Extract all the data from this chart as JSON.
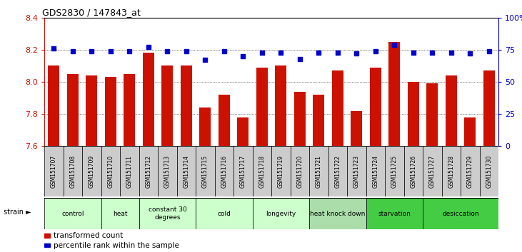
{
  "title": "GDS2830 / 147843_at",
  "samples": [
    "GSM151707",
    "GSM151708",
    "GSM151709",
    "GSM151710",
    "GSM151711",
    "GSM151712",
    "GSM151713",
    "GSM151714",
    "GSM151715",
    "GSM151716",
    "GSM151717",
    "GSM151718",
    "GSM151719",
    "GSM151720",
    "GSM151721",
    "GSM151722",
    "GSM151723",
    "GSM151724",
    "GSM151725",
    "GSM151726",
    "GSM151727",
    "GSM151728",
    "GSM151729",
    "GSM151730"
  ],
  "bar_values": [
    8.1,
    8.05,
    8.04,
    8.03,
    8.05,
    8.18,
    8.1,
    8.1,
    7.84,
    7.92,
    7.78,
    8.09,
    8.1,
    7.94,
    7.92,
    8.07,
    7.82,
    8.09,
    8.25,
    8.0,
    7.99,
    8.04,
    7.78,
    8.07
  ],
  "dot_values": [
    76,
    74,
    74,
    74,
    74,
    77,
    74,
    74,
    67,
    74,
    70,
    73,
    73,
    68,
    73,
    73,
    72,
    74,
    79,
    73,
    73,
    73,
    72,
    74
  ],
  "bar_color": "#cc1100",
  "dot_color": "#0000cc",
  "ylim_left": [
    7.6,
    8.4
  ],
  "ylim_right": [
    0,
    100
  ],
  "yticks_left": [
    7.6,
    7.8,
    8.0,
    8.2,
    8.4
  ],
  "yticks_right": [
    0,
    25,
    50,
    75,
    100
  ],
  "ytick_labels_right": [
    "0",
    "25",
    "50",
    "75",
    "100%"
  ],
  "groups": [
    {
      "label": "control",
      "start": 0,
      "end": 3,
      "color": "#ccffcc"
    },
    {
      "label": "heat",
      "start": 3,
      "end": 5,
      "color": "#ccffcc"
    },
    {
      "label": "constant 30\ndegrees",
      "start": 5,
      "end": 8,
      "color": "#ccffcc"
    },
    {
      "label": "cold",
      "start": 8,
      "end": 11,
      "color": "#ccffcc"
    },
    {
      "label": "longevity",
      "start": 11,
      "end": 14,
      "color": "#ccffcc"
    },
    {
      "label": "heat knock down",
      "start": 14,
      "end": 17,
      "color": "#aaddaa"
    },
    {
      "label": "starvation",
      "start": 17,
      "end": 20,
      "color": "#44cc44"
    },
    {
      "label": "desiccation",
      "start": 20,
      "end": 24,
      "color": "#44cc44"
    }
  ],
  "legend_bar_label": "transformed count",
  "legend_dot_label": "percentile rank within the sample",
  "strain_label": "strain",
  "bar_width": 0.6,
  "gridline_color": "#000000",
  "sample_box_color": "#cccccc",
  "strain_arrow": "►"
}
